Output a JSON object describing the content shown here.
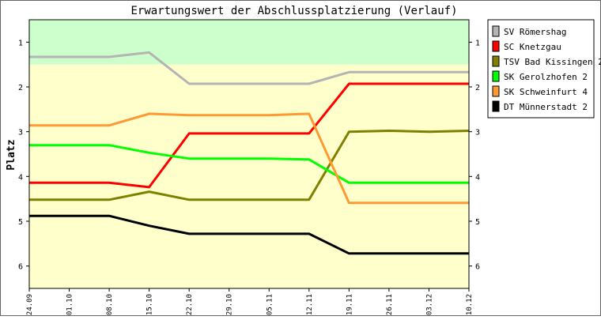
{
  "chart_data": {
    "type": "line",
    "title": "Erwartungswert der Abschlussplatzierung (Verlauf)",
    "ylabel": "Platz",
    "xlabel": "",
    "ylim": [
      0.5,
      6.5
    ],
    "y_inverted": true,
    "y_ticks": [
      "1",
      "2",
      "3",
      "4",
      "5",
      "6"
    ],
    "categories": [
      "24.09",
      "01.10",
      "08.10",
      "15.10",
      "22.10",
      "29.10",
      "05.11",
      "12.11",
      "19.11",
      "26.11",
      "03.12",
      "10.12"
    ],
    "bands": [
      {
        "from": 0.5,
        "to": 1.5,
        "color": "#ccffcc"
      },
      {
        "from": 1.5,
        "to": 6.5,
        "color": "#ffffcc"
      }
    ],
    "grid": false,
    "legend_position": "right",
    "series": [
      {
        "name": "SV Römershag",
        "color": "#b4b4b4",
        "values": [
          1.33,
          1.33,
          1.33,
          1.23,
          1.93,
          1.93,
          1.93,
          1.93,
          1.67,
          1.67,
          1.67,
          1.67
        ]
      },
      {
        "name": "SC Knetzgau",
        "color": "#ff0000",
        "values": [
          4.14,
          4.14,
          4.14,
          4.24,
          3.04,
          3.04,
          3.04,
          3.04,
          1.93,
          1.93,
          1.93,
          1.93
        ]
      },
      {
        "name": "TSV Bad Kissingen 2",
        "color": "#808000",
        "values": [
          4.52,
          4.52,
          4.52,
          4.34,
          4.52,
          4.52,
          4.52,
          4.52,
          3.0,
          2.98,
          3.0,
          2.98
        ]
      },
      {
        "name": "SK Gerolzhofen 2",
        "color": "#00ff00",
        "values": [
          3.3,
          3.3,
          3.3,
          3.47,
          3.6,
          3.6,
          3.6,
          3.62,
          4.14,
          4.14,
          4.14,
          4.14
        ]
      },
      {
        "name": "SK Schweinfurt 4",
        "color": "#ff9933",
        "values": [
          2.86,
          2.86,
          2.86,
          2.6,
          2.63,
          2.63,
          2.63,
          2.6,
          4.59,
          4.59,
          4.59,
          4.59
        ]
      },
      {
        "name": "DT Münnerstadt 2",
        "color": "#000000",
        "values": [
          4.88,
          4.88,
          4.88,
          5.1,
          5.28,
          5.28,
          5.28,
          5.28,
          5.72,
          5.72,
          5.72,
          5.72
        ]
      }
    ]
  }
}
